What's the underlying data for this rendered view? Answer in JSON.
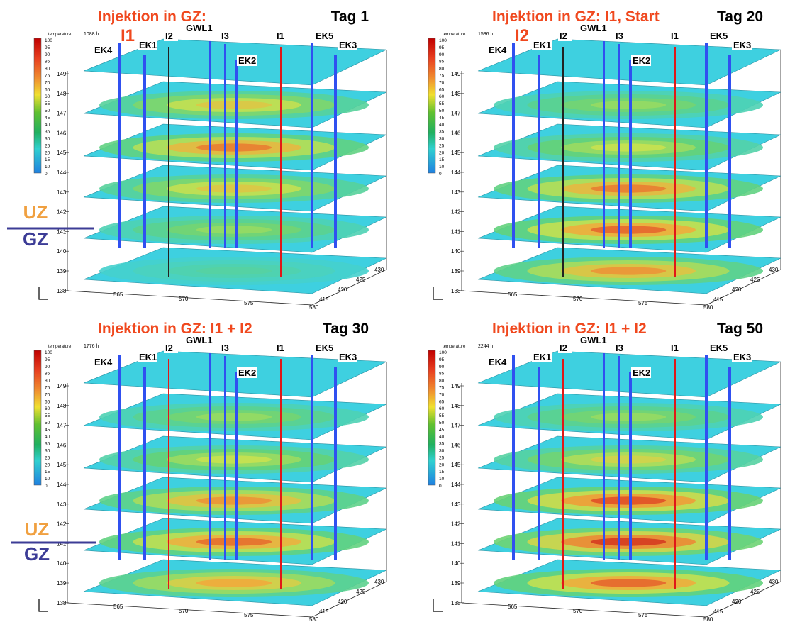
{
  "colors": {
    "title_red": "#f0481e",
    "uz_orange": "#f0a040",
    "gz_blue": "#3c3c96",
    "well_blue": "#3050f0",
    "well_red": "#e01818",
    "slab_base": "#3ed0e0"
  },
  "legend": {
    "title": "temperature",
    "values": [
      "100",
      "95",
      "90",
      "85",
      "80",
      "75",
      "70",
      "65",
      "60",
      "55",
      "50",
      "45",
      "40",
      "35",
      "30",
      "25",
      "20",
      "15",
      "10",
      "0"
    ]
  },
  "axes": {
    "z_ticks": [
      "149",
      "148",
      "147",
      "146",
      "145",
      "144",
      "143",
      "142",
      "141",
      "140",
      "139",
      "138"
    ],
    "x_ticks": [
      "565",
      "570",
      "575",
      "580"
    ],
    "y_ticks": [
      "415",
      "420",
      "425",
      "430"
    ]
  },
  "wells": {
    "labels": [
      "EK4",
      "EK1",
      "I2",
      "GWL1",
      "I3",
      "I1",
      "EK5",
      "EK3",
      "EK2"
    ]
  },
  "side_labels": {
    "uz": "UZ",
    "gz": "GZ"
  },
  "panels": [
    {
      "title": "Injektion in GZ:",
      "day": "Tag 1",
      "time": "1088 h",
      "injector": "I1",
      "heat": [
        0.0,
        0.55,
        0.75,
        0.55,
        0.35,
        0.15
      ],
      "active_wells": [
        "I1"
      ]
    },
    {
      "title": "Injektion in GZ: I1, Start",
      "day": "Tag 20",
      "time": "1536 h",
      "injector": "I2",
      "heat": [
        0.0,
        0.35,
        0.45,
        0.75,
        0.8,
        0.7
      ],
      "active_wells": [
        "I1"
      ]
    },
    {
      "title": "Injektion in GZ: I1 + I2",
      "day": "Tag 30",
      "time": "1776 h",
      "injector": "",
      "heat": [
        0.0,
        0.35,
        0.45,
        0.7,
        0.78,
        0.65
      ],
      "active_wells": [
        "I1",
        "I2"
      ]
    },
    {
      "title": "Injektion in GZ: I1 + I2",
      "day": "Tag 50",
      "time": "2244 h",
      "injector": "",
      "heat": [
        0.0,
        0.35,
        0.5,
        0.85,
        0.9,
        0.8
      ],
      "active_wells": [
        "I1",
        "I2"
      ]
    }
  ]
}
